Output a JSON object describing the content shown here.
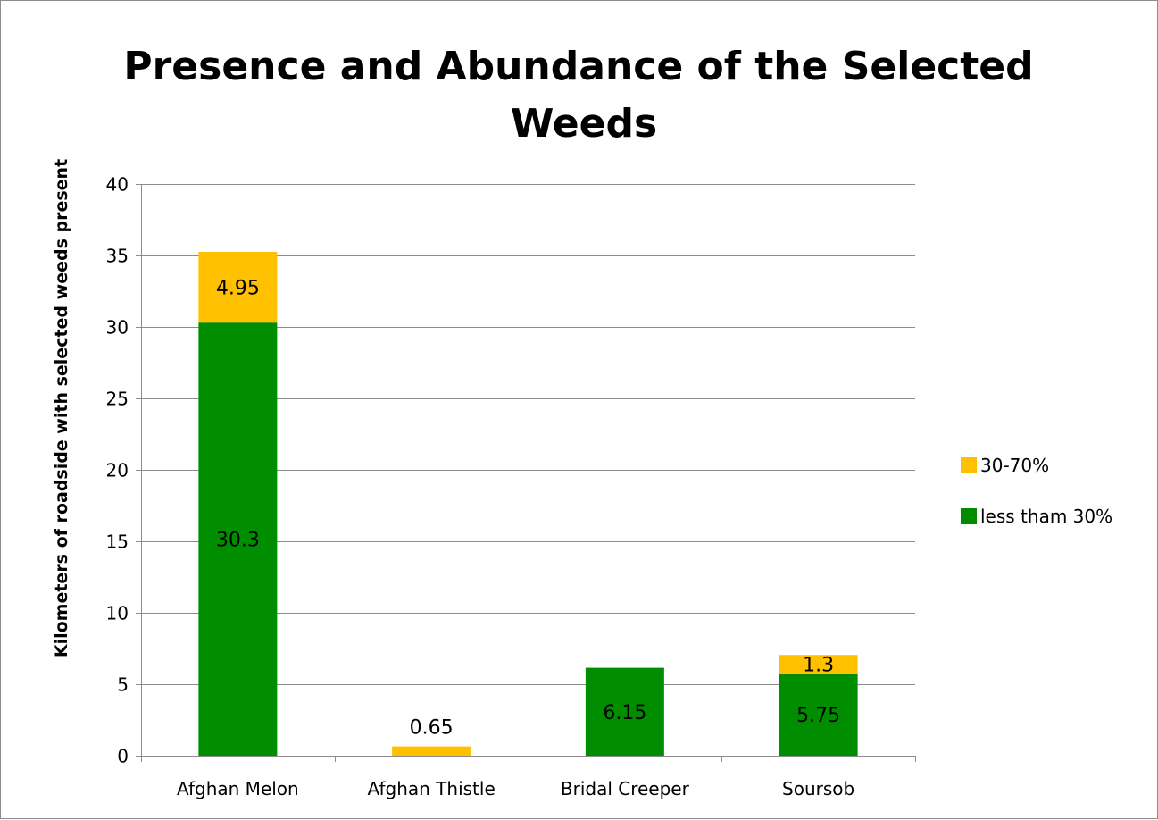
{
  "chart_data": {
    "type": "bar",
    "stacked": true,
    "title": "Presence and Abundance of the Selected Weeds",
    "title_lines": [
      "Presence and Abundance of the Selected",
      "Weeds"
    ],
    "xlabel": "",
    "ylabel": "Kilometers of roadside with selected weeds present",
    "ylim": [
      0,
      40
    ],
    "yticks": [
      0,
      5,
      10,
      15,
      20,
      25,
      30,
      35,
      40
    ],
    "grid": true,
    "legend_position": "right",
    "categories": [
      "Afghan Melon",
      "Afghan Thistle",
      "Bridal Creeper",
      "Soursob"
    ],
    "series": [
      {
        "name": "less tham 30%",
        "color": "#008e00",
        "values": [
          30.3,
          null,
          6.15,
          5.75
        ],
        "labels": [
          "30.3",
          "",
          "6.15",
          "5.75"
        ]
      },
      {
        "name": "30-70%",
        "color": "#ffc000",
        "values": [
          4.95,
          0.65,
          null,
          1.3
        ],
        "labels": [
          "4.95",
          "0.65",
          "",
          "1.3"
        ]
      }
    ],
    "legend_order": [
      1,
      0
    ]
  }
}
